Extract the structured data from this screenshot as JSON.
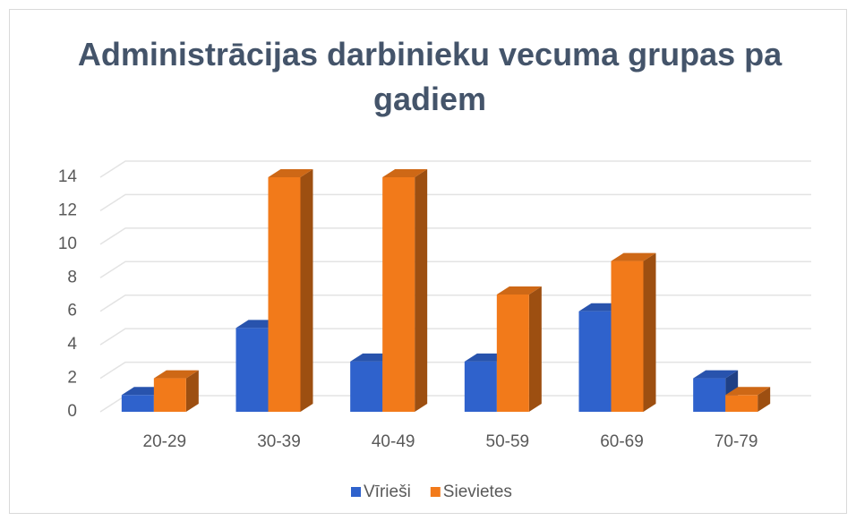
{
  "chart_data": {
    "type": "bar3d",
    "title": "Administrācijas darbinieku vecuma grupas pa gadiem",
    "categories": [
      "20-29",
      "30-39",
      "40-49",
      "50-59",
      "60-69",
      "70-79"
    ],
    "series": [
      {
        "name": "Vīrieši",
        "color": "#2f62cc",
        "values": [
          1,
          5,
          3,
          3,
          6,
          2
        ]
      },
      {
        "name": "Sievietes",
        "color": "#f27a1a",
        "values": [
          2,
          14,
          14,
          7,
          9,
          1
        ]
      }
    ],
    "ylim": [
      0,
      14
    ],
    "yticks": [
      0,
      2,
      4,
      6,
      8,
      10,
      12,
      14
    ],
    "grid": true,
    "legend": "bottom"
  }
}
